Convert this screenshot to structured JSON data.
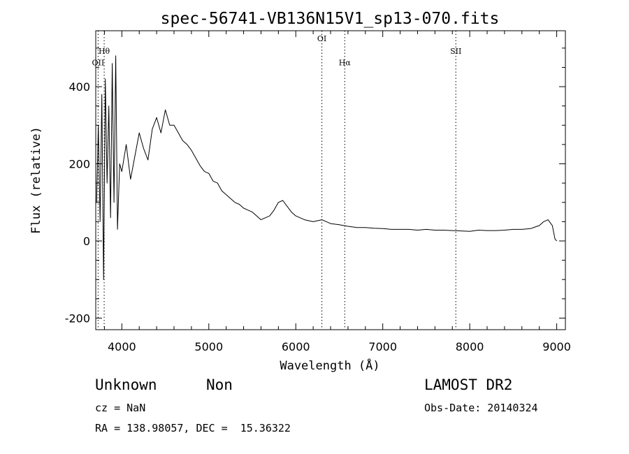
{
  "chart_data": {
    "type": "line",
    "title": "spec-56741-VB136N15V1_sp13-070.fits",
    "xlabel": "Wavelength (Å)",
    "ylabel": "Flux (relative)",
    "xlim": [
      3700,
      9100
    ],
    "ylim": [
      -230,
      545
    ],
    "xticks": [
      "4000",
      "5000",
      "6000",
      "7000",
      "8000",
      "9000"
    ],
    "yticks": [
      "-200",
      "0",
      "200",
      "400"
    ],
    "xtick_values": [
      4000,
      5000,
      6000,
      7000,
      8000,
      9000
    ],
    "ytick_values": [
      -200,
      0,
      200,
      400
    ],
    "grid": false,
    "lines": [
      {
        "label": "OII",
        "x": 3727,
        "label_y": 455
      },
      {
        "label": "Hθ",
        "x": 3797,
        "label_y": 485
      },
      {
        "label": "OI",
        "x": 6300,
        "label_y": 518
      },
      {
        "label": "Hα",
        "x": 6563,
        "label_y": 455
      },
      {
        "label": "SII",
        "x": 7840,
        "label_y": 485
      }
    ],
    "series": [
      {
        "x": [
          3710,
          3730,
          3750,
          3770,
          3790,
          3810,
          3830,
          3850,
          3870,
          3890,
          3910,
          3930,
          3950,
          3975,
          4000,
          4050,
          4100,
          4150,
          4200,
          4250,
          4300,
          4350,
          4400,
          4450,
          4500,
          4550,
          4600,
          4650,
          4700,
          4750,
          4800,
          4850,
          4900,
          4950,
          5000,
          5050,
          5100,
          5150,
          5200,
          5250,
          5300,
          5350,
          5400,
          5450,
          5500,
          5550,
          5600,
          5650,
          5700,
          5750,
          5800,
          5850,
          5900,
          5950,
          6000,
          6100,
          6200,
          6300,
          6400,
          6500,
          6600,
          6700,
          6800,
          6900,
          7000,
          7100,
          7200,
          7300,
          7400,
          7500,
          7600,
          7700,
          7800,
          7900,
          8000,
          8100,
          8200,
          8300,
          8400,
          8500,
          8600,
          8700,
          8800,
          8850,
          8900,
          8950,
          8980,
          9000
        ],
        "values": [
          100,
          300,
          50,
          380,
          -100,
          420,
          150,
          350,
          60,
          460,
          100,
          480,
          30,
          200,
          180,
          250,
          160,
          220,
          280,
          240,
          210,
          290,
          320,
          280,
          340,
          300,
          300,
          280,
          260,
          250,
          235,
          215,
          195,
          180,
          175,
          155,
          150,
          130,
          120,
          110,
          100,
          95,
          85,
          80,
          75,
          65,
          55,
          60,
          65,
          80,
          100,
          105,
          90,
          75,
          65,
          55,
          50,
          55,
          45,
          42,
          38,
          35,
          35,
          33,
          32,
          30,
          30,
          30,
          28,
          30,
          28,
          28,
          27,
          26,
          25,
          28,
          27,
          27,
          28,
          30,
          30,
          32,
          40,
          50,
          55,
          40,
          5,
          0
        ]
      }
    ]
  },
  "info": {
    "class": "Unknown",
    "subclass": "Non",
    "survey": "LAMOST DR2",
    "cz": "cz = NaN",
    "obs_date": "Obs-Date: 20140324",
    "radec": "RA = 138.98057, DEC =  15.36322"
  }
}
